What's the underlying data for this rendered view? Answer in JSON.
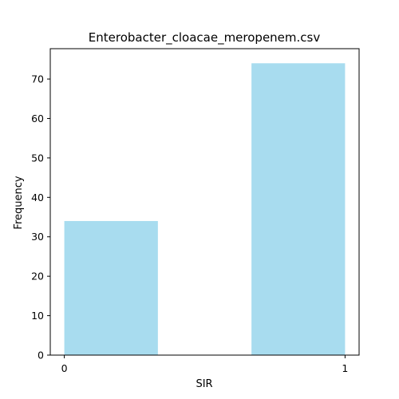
{
  "chart_data": {
    "type": "bar",
    "title": "Enterobacter_cloacae_meropenem.csv",
    "xlabel": "SIR",
    "ylabel": "Frequency",
    "bins": [
      {
        "start": 0.0,
        "end": 0.3333,
        "value": 34
      },
      {
        "start": 0.3333,
        "end": 0.6667,
        "value": 0
      },
      {
        "start": 0.6667,
        "end": 1.0,
        "value": 74
      }
    ],
    "xlim": [
      -0.05,
      1.05
    ],
    "ylim": [
      0,
      77.7
    ],
    "x_ticks": [
      0,
      1
    ],
    "y_ticks": [
      0,
      10,
      20,
      30,
      40,
      50,
      60,
      70
    ],
    "bar_color": "#a8dcef",
    "grid": false
  }
}
